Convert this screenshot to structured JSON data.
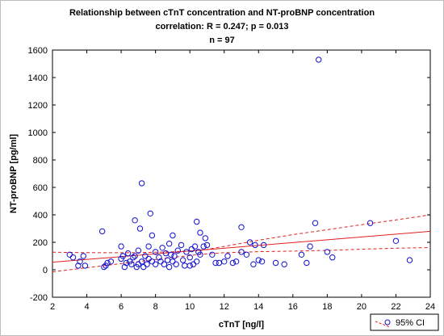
{
  "chart_data": {
    "type": "scatter",
    "title_lines": [
      "Relationship between cTnT concentration and NT-proBNP concentration",
      "correlation: R = 0.247; p = 0.013",
      "n = 97"
    ],
    "xlabel": "cTnT [ng/l]",
    "ylabel": "NT-proBNP [pg/ml]",
    "xlim": [
      2,
      24
    ],
    "ylim": [
      -200,
      1600
    ],
    "xticks": [
      2,
      4,
      6,
      8,
      10,
      12,
      14,
      16,
      18,
      20,
      22,
      24
    ],
    "yticks": [
      -200,
      0,
      200,
      400,
      600,
      800,
      1000,
      1200,
      1400,
      1600
    ],
    "grid": false,
    "legend": {
      "position": "bottom-right",
      "label": "95% CI"
    },
    "colors": {
      "points": "#1010d0",
      "fit": "#e02020"
    },
    "regression": {
      "x": [
        2,
        24
      ],
      "y": [
        55,
        280
      ]
    },
    "ci_upper": {
      "x": [
        2,
        3,
        5,
        7,
        9,
        10.6,
        12,
        14,
        16,
        18,
        20,
        22,
        24
      ],
      "y": [
        128,
        126,
        124,
        125,
        131,
        140,
        170,
        215,
        256,
        292,
        328,
        363,
        400
      ]
    },
    "ci_lower": {
      "x": [
        2,
        3,
        5,
        7,
        9,
        10.6,
        12,
        14,
        16,
        18,
        20,
        22,
        24
      ],
      "y": [
        -15,
        0,
        30,
        60,
        90,
        112,
        124,
        132,
        136,
        141,
        150,
        157,
        162
      ]
    },
    "points": [
      {
        "x": 3.0,
        "y": 110
      },
      {
        "x": 3.5,
        "y": 30
      },
      {
        "x": 3.6,
        "y": 60
      },
      {
        "x": 3.8,
        "y": 100
      },
      {
        "x": 3.9,
        "y": 30
      },
      {
        "x": 4.9,
        "y": 280
      },
      {
        "x": 5.0,
        "y": 20
      },
      {
        "x": 5.1,
        "y": 30
      },
      {
        "x": 5.2,
        "y": 50
      },
      {
        "x": 5.4,
        "y": 60
      },
      {
        "x": 6.0,
        "y": 80
      },
      {
        "x": 6.0,
        "y": 170
      },
      {
        "x": 6.1,
        "y": 100
      },
      {
        "x": 6.2,
        "y": 20
      },
      {
        "x": 6.4,
        "y": 120
      },
      {
        "x": 6.5,
        "y": 60
      },
      {
        "x": 6.6,
        "y": 40
      },
      {
        "x": 6.7,
        "y": 90
      },
      {
        "x": 6.8,
        "y": 100
      },
      {
        "x": 6.8,
        "y": 360
      },
      {
        "x": 6.9,
        "y": 20
      },
      {
        "x": 7.0,
        "y": 40
      },
      {
        "x": 7.0,
        "y": 140
      },
      {
        "x": 7.1,
        "y": 300
      },
      {
        "x": 7.2,
        "y": 630
      },
      {
        "x": 7.2,
        "y": 60
      },
      {
        "x": 7.3,
        "y": 20
      },
      {
        "x": 7.4,
        "y": 100
      },
      {
        "x": 7.5,
        "y": 40
      },
      {
        "x": 7.6,
        "y": 170
      },
      {
        "x": 7.6,
        "y": 80
      },
      {
        "x": 7.7,
        "y": 410
      },
      {
        "x": 7.8,
        "y": 250
      },
      {
        "x": 7.8,
        "y": 60
      },
      {
        "x": 8.0,
        "y": 130
      },
      {
        "x": 8.0,
        "y": 40
      },
      {
        "x": 8.2,
        "y": 90
      },
      {
        "x": 8.3,
        "y": 60
      },
      {
        "x": 8.4,
        "y": 160
      },
      {
        "x": 8.5,
        "y": 40
      },
      {
        "x": 8.6,
        "y": 120
      },
      {
        "x": 8.7,
        "y": 70
      },
      {
        "x": 8.8,
        "y": 190
      },
      {
        "x": 8.8,
        "y": 20
      },
      {
        "x": 9.0,
        "y": 250
      },
      {
        "x": 9.0,
        "y": 60
      },
      {
        "x": 9.1,
        "y": 100
      },
      {
        "x": 9.2,
        "y": 40
      },
      {
        "x": 9.3,
        "y": 140
      },
      {
        "x": 9.5,
        "y": 180
      },
      {
        "x": 9.6,
        "y": 70
      },
      {
        "x": 9.7,
        "y": 30
      },
      {
        "x": 9.8,
        "y": 130
      },
      {
        "x": 10.0,
        "y": 90
      },
      {
        "x": 10.1,
        "y": 150
      },
      {
        "x": 10.2,
        "y": 40
      },
      {
        "x": 10.3,
        "y": 170
      },
      {
        "x": 10.4,
        "y": 350
      },
      {
        "x": 10.4,
        "y": 60
      },
      {
        "x": 10.5,
        "y": 130
      },
      {
        "x": 10.6,
        "y": 110
      },
      {
        "x": 10.6,
        "y": 270
      },
      {
        "x": 10.8,
        "y": 170
      },
      {
        "x": 10.9,
        "y": 230
      },
      {
        "x": 11.0,
        "y": 180
      },
      {
        "x": 11.3,
        "y": 110
      },
      {
        "x": 11.5,
        "y": 50
      },
      {
        "x": 11.7,
        "y": 50
      },
      {
        "x": 12.2,
        "y": 100
      },
      {
        "x": 12.5,
        "y": 50
      },
      {
        "x": 12.7,
        "y": 60
      },
      {
        "x": 13.0,
        "y": 310
      },
      {
        "x": 13.0,
        "y": 130
      },
      {
        "x": 13.3,
        "y": 110
      },
      {
        "x": 13.5,
        "y": 200
      },
      {
        "x": 13.7,
        "y": 40
      },
      {
        "x": 13.8,
        "y": 180
      },
      {
        "x": 14.0,
        "y": 70
      },
      {
        "x": 14.2,
        "y": 60
      },
      {
        "x": 14.3,
        "y": 180
      },
      {
        "x": 15.0,
        "y": 50
      },
      {
        "x": 15.5,
        "y": 40
      },
      {
        "x": 16.5,
        "y": 110
      },
      {
        "x": 16.8,
        "y": 50
      },
      {
        "x": 17.0,
        "y": 170
      },
      {
        "x": 17.3,
        "y": 340
      },
      {
        "x": 17.5,
        "y": 1530
      },
      {
        "x": 18.0,
        "y": 130
      },
      {
        "x": 18.3,
        "y": 90
      },
      {
        "x": 20.5,
        "y": 340
      },
      {
        "x": 22.0,
        "y": 210
      },
      {
        "x": 22.8,
        "y": 70
      },
      {
        "x": 3.2,
        "y": 90
      },
      {
        "x": 6.3,
        "y": 50
      },
      {
        "x": 8.9,
        "y": 110
      },
      {
        "x": 10.0,
        "y": 30
      },
      {
        "x": 12.0,
        "y": 60
      }
    ]
  }
}
